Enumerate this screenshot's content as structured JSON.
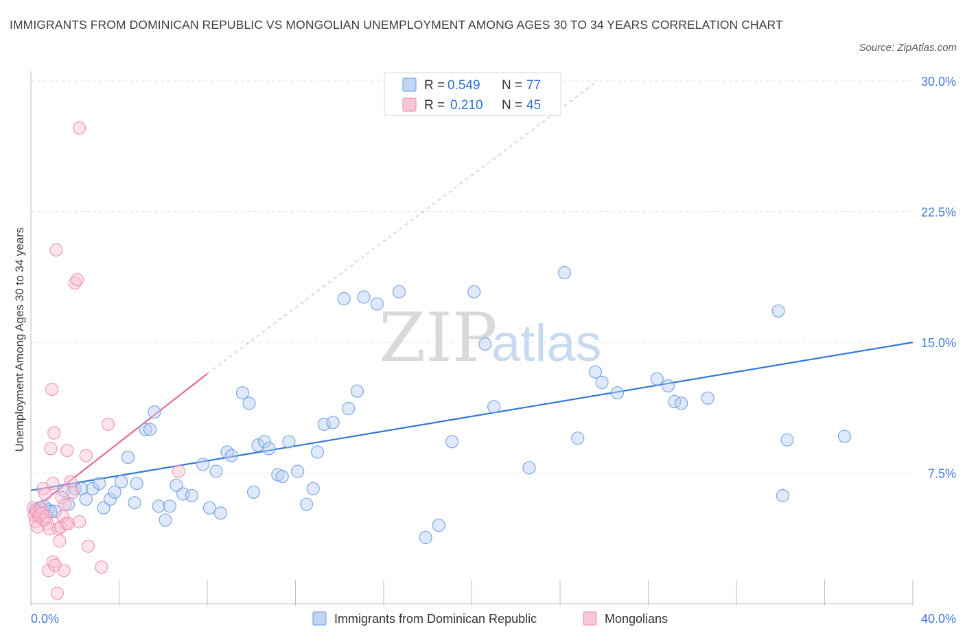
{
  "header": {
    "title": "IMMIGRANTS FROM DOMINICAN REPUBLIC VS MONGOLIAN UNEMPLOYMENT AMONG AGES 30 TO 34 YEARS CORRELATION CHART",
    "source": "Source: ZipAtlas.com"
  },
  "legend": {
    "r_label": "R =",
    "n_label": "N =",
    "rows": [
      {
        "r": "0.549",
        "n": "77"
      },
      {
        "r": "0.210",
        "n": "45"
      }
    ]
  },
  "watermark": {
    "zip": "ZIP",
    "atlas": "atlas"
  },
  "chart_data": {
    "type": "scatter",
    "title": "IMMIGRANTS FROM DOMINICAN REPUBLIC VS MONGOLIAN UNEMPLOYMENT AMONG AGES 30 TO 34 YEARS CORRELATION CHART",
    "xlabel": "",
    "ylabel": "Unemployment Among Ages 30 to 34 years",
    "xlim": [
      0,
      40
    ],
    "ylim": [
      0,
      30
    ],
    "x_tick_labels": [
      "0.0%",
      "40.0%"
    ],
    "y_ticks": [
      7.5,
      15,
      22.5,
      30
    ],
    "y_tick_labels": [
      "7.5%",
      "15.0%",
      "22.5%",
      "30.0%"
    ],
    "grid": true,
    "legend_position": "top-center",
    "colors": {
      "blue": "#6fa0e3",
      "pink": "#f08db0",
      "blue_line": "#2f78d6",
      "pink_line": "#e06a93"
    },
    "series": [
      {
        "name": "Immigrants from Dominican Republic",
        "color": "#6fa0e3",
        "points": [
          [
            0.2,
            5.4
          ],
          [
            0.4,
            5.5
          ],
          [
            0.5,
            5.2
          ],
          [
            0.6,
            5.6
          ],
          [
            0.8,
            5.4
          ],
          [
            0.9,
            5.3
          ],
          [
            1.1,
            5.3
          ],
          [
            1.5,
            6.5
          ],
          [
            1.7,
            5.7
          ],
          [
            2.0,
            6.6
          ],
          [
            2.3,
            6.6
          ],
          [
            2.5,
            6.0
          ],
          [
            2.8,
            6.6
          ],
          [
            3.1,
            6.9
          ],
          [
            3.3,
            5.5
          ],
          [
            3.6,
            6.0
          ],
          [
            3.8,
            6.4
          ],
          [
            4.1,
            7.0
          ],
          [
            4.4,
            8.4
          ],
          [
            4.7,
            5.8
          ],
          [
            4.8,
            6.9
          ],
          [
            5.2,
            10.0
          ],
          [
            5.4,
            10.0
          ],
          [
            5.6,
            11.0
          ],
          [
            5.8,
            5.6
          ],
          [
            6.1,
            4.8
          ],
          [
            6.3,
            5.6
          ],
          [
            6.6,
            6.8
          ],
          [
            6.9,
            6.3
          ],
          [
            7.3,
            6.2
          ],
          [
            7.8,
            8.0
          ],
          [
            8.1,
            5.5
          ],
          [
            8.4,
            7.6
          ],
          [
            8.6,
            5.2
          ],
          [
            8.9,
            8.7
          ],
          [
            9.1,
            8.5
          ],
          [
            9.6,
            12.1
          ],
          [
            9.9,
            11.5
          ],
          [
            10.1,
            6.4
          ],
          [
            10.3,
            9.1
          ],
          [
            10.6,
            9.3
          ],
          [
            10.8,
            8.9
          ],
          [
            11.2,
            7.4
          ],
          [
            11.4,
            7.3
          ],
          [
            11.7,
            9.3
          ],
          [
            12.1,
            7.6
          ],
          [
            12.5,
            5.7
          ],
          [
            12.8,
            6.6
          ],
          [
            13.0,
            8.7
          ],
          [
            13.3,
            10.3
          ],
          [
            13.7,
            10.4
          ],
          [
            14.2,
            17.5
          ],
          [
            14.4,
            11.2
          ],
          [
            14.8,
            12.2
          ],
          [
            15.1,
            17.6
          ],
          [
            15.7,
            17.2
          ],
          [
            16.7,
            17.9
          ],
          [
            17.9,
            3.8
          ],
          [
            18.5,
            4.5
          ],
          [
            19.1,
            9.3
          ],
          [
            20.1,
            17.9
          ],
          [
            20.6,
            14.9
          ],
          [
            21.0,
            11.3
          ],
          [
            22.6,
            7.8
          ],
          [
            24.2,
            19.0
          ],
          [
            24.8,
            9.5
          ],
          [
            25.6,
            13.3
          ],
          [
            25.9,
            12.7
          ],
          [
            26.6,
            12.1
          ],
          [
            28.4,
            12.9
          ],
          [
            28.9,
            12.5
          ],
          [
            29.2,
            11.6
          ],
          [
            29.5,
            11.5
          ],
          [
            30.7,
            11.8
          ],
          [
            33.9,
            16.8
          ],
          [
            34.1,
            6.2
          ],
          [
            34.3,
            9.4
          ],
          [
            36.9,
            9.6
          ]
        ],
        "trend": {
          "x": [
            0,
            40
          ],
          "y": [
            6.5,
            15.0
          ]
        }
      },
      {
        "name": "Mongolians",
        "color": "#f08db0",
        "points": [
          [
            0.1,
            5.5
          ],
          [
            0.15,
            5.1
          ],
          [
            0.2,
            4.7
          ],
          [
            0.25,
            5.3
          ],
          [
            0.3,
            4.4
          ],
          [
            0.35,
            5.0
          ],
          [
            0.4,
            5.1
          ],
          [
            0.45,
            5.5
          ],
          [
            0.5,
            5.2
          ],
          [
            0.55,
            6.6
          ],
          [
            0.6,
            4.8
          ],
          [
            0.65,
            6.3
          ],
          [
            0.7,
            5.0
          ],
          [
            0.75,
            4.6
          ],
          [
            0.8,
            1.9
          ],
          [
            0.85,
            4.3
          ],
          [
            0.9,
            8.9
          ],
          [
            0.95,
            12.3
          ],
          [
            1.0,
            2.4
          ],
          [
            1.05,
            9.8
          ],
          [
            1.1,
            2.2
          ],
          [
            1.15,
            20.3
          ],
          [
            1.2,
            0.6
          ],
          [
            1.25,
            4.3
          ],
          [
            1.3,
            3.6
          ],
          [
            1.35,
            4.4
          ],
          [
            1.4,
            6.1
          ],
          [
            1.45,
            5.0
          ],
          [
            1.5,
            1.9
          ],
          [
            1.55,
            5.7
          ],
          [
            1.6,
            4.6
          ],
          [
            1.65,
            8.8
          ],
          [
            1.7,
            4.6
          ],
          [
            1.8,
            7.0
          ],
          [
            1.9,
            6.4
          ],
          [
            2.0,
            18.4
          ],
          [
            2.1,
            18.6
          ],
          [
            2.2,
            4.7
          ],
          [
            2.5,
            8.5
          ],
          [
            2.6,
            3.3
          ],
          [
            2.2,
            27.3
          ],
          [
            3.2,
            2.1
          ],
          [
            3.5,
            10.3
          ],
          [
            6.7,
            7.6
          ],
          [
            1.0,
            6.9
          ]
        ],
        "trend": {
          "x": [
            0,
            8.0
          ],
          "y": [
            5.3,
            13.2
          ]
        },
        "trend_extension": {
          "x": [
            8.0,
            25.7
          ],
          "y": [
            13.2,
            30.0
          ]
        }
      }
    ]
  },
  "bottom_legend": {
    "items": [
      {
        "label": "Immigrants from Dominican Republic"
      },
      {
        "label": "Mongolians"
      }
    ]
  }
}
